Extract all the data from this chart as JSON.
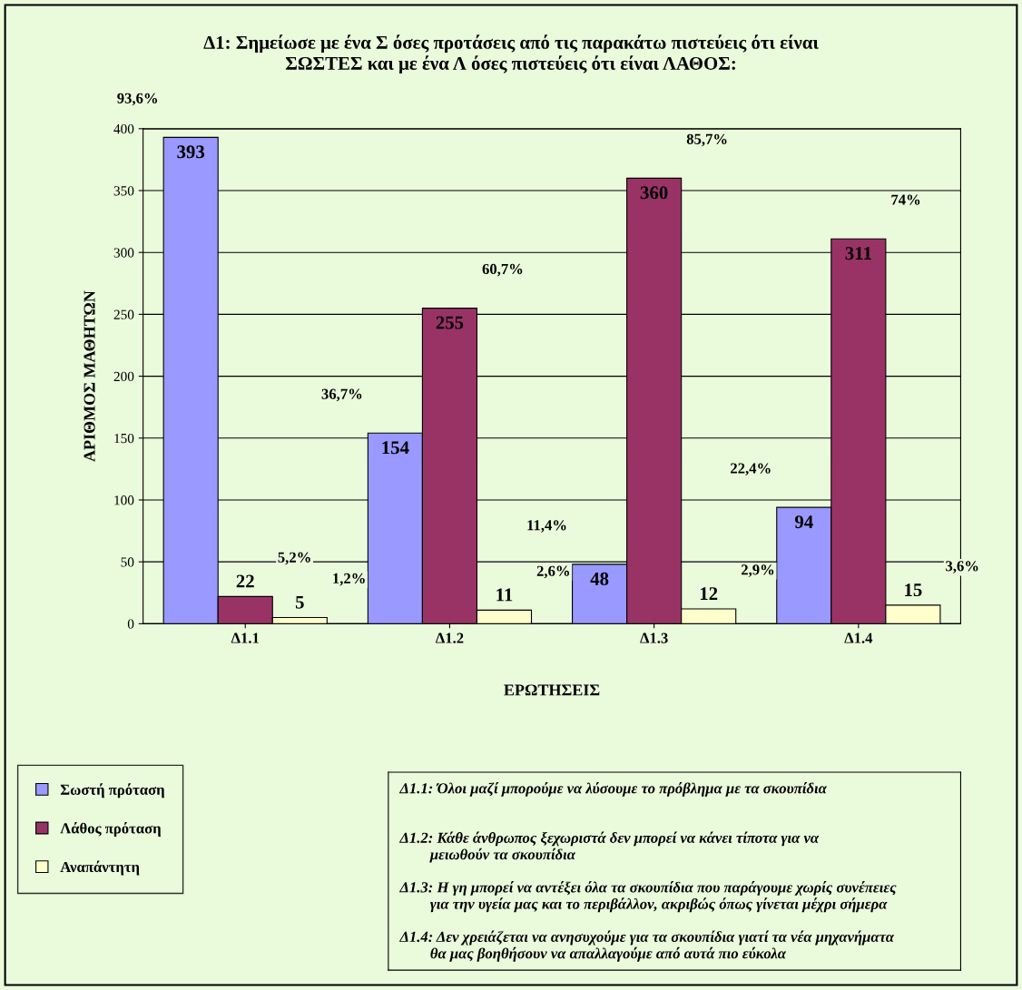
{
  "chart_data": {
    "type": "bar",
    "title": "Δ1: Σημείωσε με ένα Σ όσες προτάσεις από τις παρακάτω πιστεύεις ότι είναι\nΣΩΣΤΕΣ και με ένα Λ όσες πιστεύεις ότι είναι ΛΑΘΟΣ:",
    "xlabel": "ΕΡΩΤΗΣΕΙΣ",
    "ylabel": "ΑΡΙΘΜΟΣ ΜΑΘΗΤΩΝ",
    "categories": [
      "Δ1.1",
      "Δ1.2",
      "Δ1.3",
      "Δ1.4"
    ],
    "series": [
      {
        "name": "Σωστή πρόταση",
        "color": "#9999ff",
        "values": [
          393,
          154,
          48,
          94
        ]
      },
      {
        "name": "Λάθος πρόταση",
        "color": "#993366",
        "values": [
          22,
          255,
          360,
          311
        ]
      },
      {
        "name": "Αναπάντητη",
        "color": "#ffffcc",
        "values": [
          5,
          11,
          12,
          15
        ]
      }
    ],
    "ylim": [
      0,
      400
    ],
    "yticks": [
      0,
      50,
      100,
      150,
      200,
      250,
      300,
      350,
      400
    ],
    "grid": "y",
    "legend": "bottom left",
    "data_labels": true,
    "annotations": [
      "93,6%",
      "36,7%",
      "11,4%",
      "22,4%",
      "5,2%",
      "60,7%",
      "85,7%",
      "74%",
      "1,2%",
      "2,6%",
      "2,9%",
      "3,6%",
      "Δ1.1: Όλοι μαζί μπορούμε να λύσουμε το πρόβλημα με τα σκουπίδια",
      "Δ1.2: Κάθε άνθρωπος ξεχωριστά δεν μπορεί να κάνει τίποτα για να\n        μειωθούν τα σκουπίδια",
      "Δ1.3: Η γη μπορεί να αντέξει όλα τα σκουπίδια που παράγουμε χωρίς συνέπειες\n        για την υγεία μας και το περιβάλλον, ακριβώς όπως γίνεται μέχρι σήμερα",
      "Δ1.4: Δεν χρειάζεται να ανησυχούμε για τα σκουπίδια γιατί τα νέα μηχανήματα\n        θα μας βοηθήσουν να απαλλαγούμε από αυτά πιο εύκολα"
    ]
  }
}
